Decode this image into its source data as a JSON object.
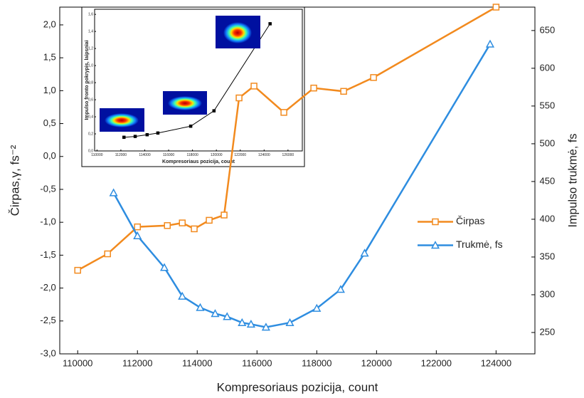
{
  "chart_data": [
    {
      "type": "line",
      "xlabel": "Kompresoriaus pozicija, count",
      "ylabel": "Čirpas,γ, fs⁻²",
      "y2label": "Impulso trukmė, fs",
      "xlim": [
        109400,
        125300
      ],
      "xticks": [
        110000,
        112000,
        114000,
        116000,
        118000,
        120000,
        122000,
        124000
      ],
      "ylim": [
        -3.0,
        2.27
      ],
      "yticks": [
        {
          "value": -3.0,
          "label": "-3,0"
        },
        {
          "value": -2.5,
          "label": "-2,5"
        },
        {
          "value": -2.0,
          "label": "-2,0"
        },
        {
          "value": -1.5,
          "label": "-1,5"
        },
        {
          "value": -1.0,
          "label": "-1,0"
        },
        {
          "value": -0.5,
          "label": "-0,5"
        },
        {
          "value": 0.0,
          "label": "0,0"
        },
        {
          "value": 0.5,
          "label": "0,5"
        },
        {
          "value": 1.0,
          "label": "1,0"
        },
        {
          "value": 1.5,
          "label": "1,5"
        },
        {
          "value": 2.0,
          "label": "2,0"
        }
      ],
      "y2lim": [
        221.7,
        681
      ],
      "y2ticks": [
        250,
        300,
        350,
        400,
        450,
        500,
        550,
        600,
        650
      ],
      "legend": "right",
      "series": [
        {
          "name": "Čirpas",
          "color": "#f28a1e",
          "marker": "square",
          "x": [
            110000,
            111000,
            112000,
            113000,
            113500,
            113900,
            114400,
            114900,
            115400,
            115900,
            116900,
            117900,
            118900,
            119900,
            124000
          ],
          "values": [
            -1.73,
            -1.48,
            -1.07,
            -1.05,
            -1.01,
            -1.1,
            -0.97,
            -0.89,
            0.89,
            1.07,
            0.67,
            1.04,
            0.99,
            1.2,
            2.27
          ]
        },
        {
          "name": "Trukmė, fs",
          "color": "#2e8de0",
          "marker": "triangle",
          "axis": "y2",
          "x": [
            111200,
            112000,
            112900,
            113500,
            114100,
            114600,
            115000,
            115500,
            115800,
            116300,
            117100,
            118000,
            118800,
            119600,
            123800
          ],
          "values": [
            435,
            378,
            336,
            298,
            283,
            275,
            271,
            263,
            261,
            257,
            263,
            282,
            307,
            355,
            632
          ]
        }
      ]
    },
    {
      "type": "line",
      "xlabel": "Kompresoriaus pozicija, count",
      "ylabel": "Impulso fronto pokrypis, laipsniai",
      "xlim": [
        109800,
        127200
      ],
      "xticks": [
        110000,
        112000,
        114000,
        116000,
        118000,
        120000,
        122000,
        124000,
        126000
      ],
      "ylim": [
        0,
        1.66
      ],
      "yticks": [
        {
          "value": 0.0,
          "label": "0,0"
        },
        {
          "value": 0.2,
          "label": "0,2"
        },
        {
          "value": 0.4,
          "label": "0,4"
        },
        {
          "value": 0.6,
          "label": "0,6"
        },
        {
          "value": 0.8,
          "label": "0,8"
        },
        {
          "value": 1.0,
          "label": "1,0"
        },
        {
          "value": 1.2,
          "label": "1,2"
        },
        {
          "value": 1.4,
          "label": "1,4"
        },
        {
          "value": 1.6,
          "label": "1,6"
        }
      ],
      "series": [
        {
          "color": "#000000",
          "marker": "square",
          "x": [
            112260,
            113200,
            114200,
            115100,
            117850,
            119800,
            124500
          ],
          "values": [
            0.16,
            0.17,
            0.19,
            0.21,
            0.29,
            0.47,
            1.49
          ]
        }
      ]
    }
  ]
}
